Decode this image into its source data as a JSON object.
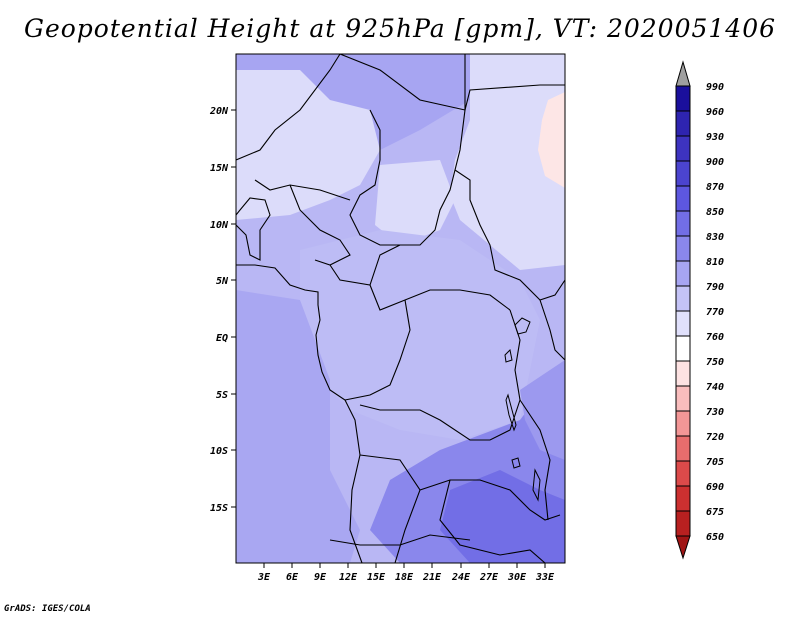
{
  "title": "Geopotential Height at 925hPa [gpm], VT: 2020051406",
  "credit": "GrADS: IGES/COLA",
  "map": {
    "lat_labels": [
      "20N",
      "15N",
      "10N",
      "5N",
      "EQ",
      "5S",
      "10S",
      "15S"
    ],
    "lon_labels": [
      "3E",
      "6E",
      "9E",
      "12E",
      "15E",
      "18E",
      "21E",
      "24E",
      "27E",
      "30E",
      "33E"
    ]
  },
  "colorbar": {
    "labels": [
      "990",
      "960",
      "930",
      "900",
      "870",
      "850",
      "830",
      "810",
      "790",
      "770",
      "760",
      "750",
      "740",
      "730",
      "720",
      "705",
      "690",
      "675",
      "650"
    ],
    "colors": [
      "#a0a0a0",
      "#1a0f9c",
      "#2e24b0",
      "#3d33c0",
      "#4b44cf",
      "#5d57df",
      "#726ee6",
      "#8a87ec",
      "#a7a5f2",
      "#c4c3f6",
      "#e0e0fb",
      "#ffffff",
      "#fde2e2",
      "#f9bdbd",
      "#f39696",
      "#e86d6d",
      "#dc4a4a",
      "#cc3030",
      "#b82020",
      "#a01515"
    ]
  }
}
